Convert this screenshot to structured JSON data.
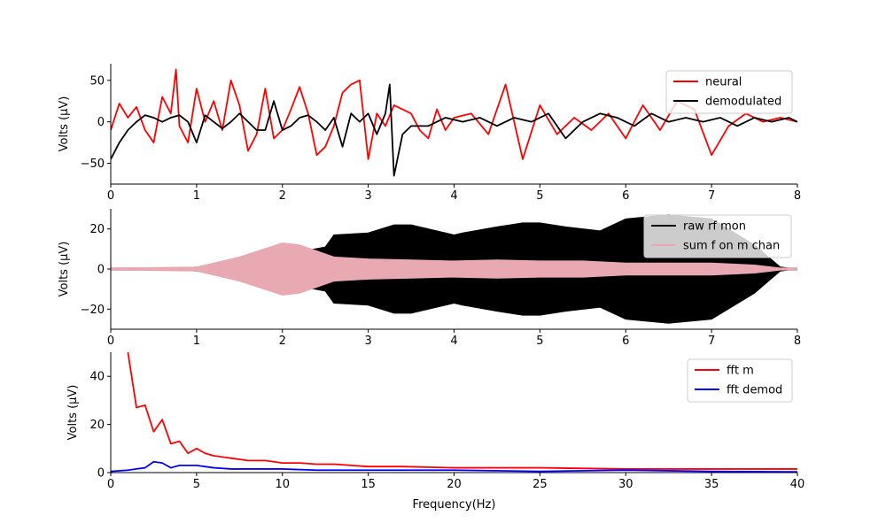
{
  "colors": {
    "neural": "#ff0000",
    "demodulated": "#000000",
    "raw": "#000000",
    "sum": "#e8a9b3",
    "fft_m": "#ff0000",
    "fft_demod": "#0000ff"
  },
  "chart_data": [
    {
      "type": "line",
      "title": "",
      "xlabel": "",
      "ylabel": "Volts (μV)",
      "xlim": [
        0,
        8
      ],
      "ylim": [
        -75,
        70
      ],
      "x_ticks": [
        "0",
        "1",
        "2",
        "3",
        "4",
        "5",
        "6",
        "7",
        "8"
      ],
      "y_ticks": [
        "−50",
        "0",
        "50"
      ],
      "legend_position": "top-right",
      "series": [
        {
          "name": "neural",
          "x": [
            0,
            0.1,
            0.2,
            0.3,
            0.4,
            0.5,
            0.6,
            0.7,
            0.76,
            0.8,
            0.9,
            1.0,
            1.1,
            1.2,
            1.3,
            1.4,
            1.5,
            1.6,
            1.7,
            1.8,
            1.9,
            2.0,
            2.1,
            2.2,
            2.3,
            2.4,
            2.5,
            2.6,
            2.7,
            2.8,
            2.9,
            3.0,
            3.1,
            3.2,
            3.3,
            3.4,
            3.5,
            3.6,
            3.7,
            3.8,
            3.9,
            4.0,
            4.2,
            4.4,
            4.6,
            4.8,
            5.0,
            5.2,
            5.4,
            5.6,
            5.8,
            6.0,
            6.2,
            6.4,
            6.6,
            6.8,
            7.0,
            7.2,
            7.4,
            7.6,
            7.8,
            8.0
          ],
          "y": [
            -10,
            22,
            5,
            18,
            -10,
            -25,
            30,
            10,
            63,
            -5,
            -25,
            40,
            0,
            25,
            -10,
            50,
            20,
            -35,
            -15,
            40,
            -20,
            -10,
            15,
            42,
            10,
            -40,
            -30,
            -5,
            35,
            45,
            50,
            -45,
            10,
            -5,
            20,
            15,
            10,
            -10,
            -20,
            15,
            -10,
            5,
            10,
            -15,
            45,
            -45,
            20,
            -15,
            5,
            -10,
            10,
            -20,
            20,
            -10,
            25,
            15,
            -40,
            -5,
            10,
            0,
            5,
            0
          ]
        },
        {
          "name": "demodulated",
          "x": [
            0,
            0.1,
            0.2,
            0.3,
            0.4,
            0.5,
            0.6,
            0.7,
            0.8,
            0.9,
            1.0,
            1.1,
            1.2,
            1.3,
            1.4,
            1.5,
            1.6,
            1.7,
            1.8,
            1.9,
            2.0,
            2.1,
            2.2,
            2.3,
            2.4,
            2.5,
            2.6,
            2.7,
            2.8,
            2.9,
            3.0,
            3.1,
            3.2,
            3.25,
            3.3,
            3.4,
            3.5,
            3.7,
            3.9,
            4.1,
            4.3,
            4.5,
            4.7,
            4.9,
            5.1,
            5.3,
            5.5,
            5.7,
            5.9,
            6.1,
            6.3,
            6.5,
            6.7,
            6.9,
            7.1,
            7.3,
            7.5,
            7.7,
            7.9,
            8.0
          ],
          "y": [
            -45,
            -25,
            -10,
            0,
            8,
            5,
            0,
            5,
            8,
            0,
            -25,
            8,
            0,
            -8,
            0,
            10,
            0,
            -10,
            -10,
            25,
            -10,
            -5,
            5,
            8,
            0,
            -10,
            5,
            -30,
            10,
            0,
            10,
            -15,
            10,
            45,
            -65,
            -15,
            -5,
            -5,
            5,
            0,
            5,
            -5,
            5,
            0,
            10,
            -20,
            0,
            10,
            5,
            -5,
            10,
            0,
            5,
            0,
            5,
            -5,
            5,
            0,
            5,
            0
          ]
        }
      ]
    },
    {
      "type": "area",
      "title": "",
      "xlabel": "",
      "ylabel": "Volts (μV)",
      "xlim": [
        0,
        8
      ],
      "ylim": [
        -30,
        30
      ],
      "x_ticks": [
        "0",
        "1",
        "2",
        "3",
        "4",
        "5",
        "6",
        "7",
        "8"
      ],
      "y_ticks": [
        "−20",
        "0",
        "20"
      ],
      "legend_position": "top-right",
      "series": [
        {
          "name": "raw rf mon",
          "x": [
            0,
            0.8,
            1.0,
            1.5,
            2.0,
            2.5,
            2.6,
            3.0,
            3.3,
            3.5,
            4.0,
            4.1,
            4.5,
            4.8,
            5.0,
            5.3,
            5.7,
            6.0,
            6.5,
            7.0,
            7.5,
            7.8,
            7.9,
            8.0
          ],
          "amplitude": [
            0.5,
            0.5,
            1.0,
            5.0,
            7.0,
            11.0,
            17.0,
            18.0,
            22.0,
            22.0,
            17.0,
            18.0,
            21.0,
            23.0,
            23.0,
            21.0,
            19.0,
            25.0,
            27.0,
            25.0,
            12.0,
            1.0,
            0.5,
            0.5
          ]
        },
        {
          "name": "sum f on m chan",
          "x": [
            0,
            1.0,
            1.5,
            2.0,
            2.2,
            2.6,
            3.0,
            3.5,
            4.0,
            4.5,
            5.0,
            5.5,
            6.0,
            6.5,
            7.0,
            7.5,
            7.8,
            8.0
          ],
          "amplitude": [
            0.5,
            1.0,
            6.0,
            13.0,
            12.0,
            6.0,
            5.0,
            4.5,
            4.0,
            4.5,
            4.0,
            4.0,
            3.0,
            3.0,
            3.0,
            2.0,
            0.5,
            0.5
          ]
        }
      ]
    },
    {
      "type": "line",
      "title": "",
      "xlabel": "Frequency(Hz)",
      "ylabel": "Volts (μV)",
      "xlim": [
        0,
        40
      ],
      "ylim": [
        0,
        50
      ],
      "x_ticks": [
        "0",
        "5",
        "10",
        "15",
        "20",
        "25",
        "30",
        "35",
        "40"
      ],
      "y_ticks": [
        "0",
        "20",
        "40"
      ],
      "legend_position": "top-right",
      "series": [
        {
          "name": "fft m",
          "x": [
            1,
            1.5,
            2,
            2.5,
            3,
            3.5,
            4,
            4.5,
            5,
            5.5,
            6,
            7,
            8,
            9,
            10,
            11,
            12,
            13,
            14,
            15,
            17,
            20,
            25,
            30,
            35,
            40
          ],
          "y": [
            50,
            27,
            28,
            17,
            22,
            12,
            13,
            8,
            10,
            8,
            7,
            6,
            5,
            5,
            4,
            4,
            3.5,
            3.5,
            3,
            2.5,
            2.5,
            2,
            2,
            1.5,
            1.5,
            1.5
          ]
        },
        {
          "name": "fft demod",
          "x": [
            0,
            1,
            1.5,
            2,
            2.5,
            3,
            3.5,
            4,
            5,
            6,
            7,
            8,
            10,
            12,
            15,
            20,
            25,
            30,
            35,
            40
          ],
          "y": [
            0.5,
            1,
            1.5,
            2,
            4.5,
            4,
            2,
            3,
            3,
            2,
            1.5,
            1.5,
            1.5,
            1,
            1,
            1,
            0.5,
            1,
            0.5,
            0.3
          ]
        }
      ]
    }
  ]
}
